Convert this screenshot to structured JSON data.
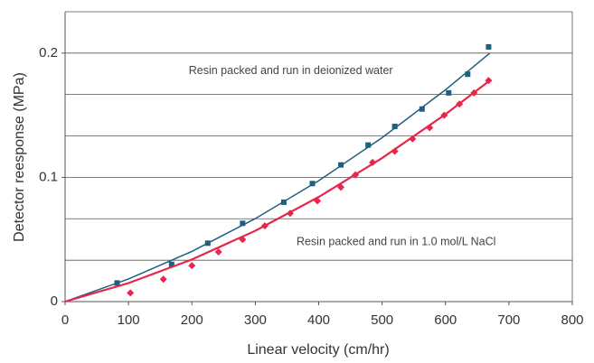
{
  "chart_data": {
    "type": "scatter",
    "x_label": "Linear velocity (cm/hr)",
    "y_label": "Detector reesponse (MPa)",
    "xlim": [
      0,
      800
    ],
    "xticks": [
      0,
      100,
      200,
      300,
      400,
      500,
      600,
      700,
      800
    ],
    "ylim": [
      0,
      0.2333
    ],
    "yticks": [
      0,
      0.1,
      0.2
    ],
    "ygrid": [
      0.0333,
      0.0667,
      0.1,
      0.1333,
      0.1667,
      0.2,
      0.2333
    ],
    "annotations": [
      {
        "text": "Resin packed and run in deionized water",
        "x": 195,
        "y": 0.1855
      },
      {
        "text": "Resin packed and run in 1.0 mol/L NaCl",
        "x": 365,
        "y": 0.048
      }
    ],
    "series": [
      {
        "color": "#1f5f7f",
        "marker": "square",
        "x": [
          82,
          168,
          225,
          280,
          345,
          390,
          435,
          478,
          520,
          563,
          605,
          635,
          668
        ],
        "values": [
          0.015,
          0.03,
          0.047,
          0.063,
          0.08,
          0.095,
          0.11,
          0.126,
          0.141,
          0.155,
          0.168,
          0.183,
          0.205
        ]
      },
      {
        "color": "#e8254a",
        "marker": "diamond",
        "x": [
          103,
          155,
          200,
          242,
          280,
          315,
          355,
          398,
          435,
          458,
          485,
          520,
          548,
          575,
          598,
          622,
          645,
          668
        ],
        "values": [
          0.007,
          0.018,
          0.029,
          0.04,
          0.05,
          0.061,
          0.071,
          0.081,
          0.092,
          0.102,
          0.112,
          0.121,
          0.131,
          0.14,
          0.15,
          0.159,
          0.168,
          0.178
        ]
      },
      {
        "color": "#1f5f7f",
        "marker": "line",
        "x": [
          0,
          100,
          200,
          300,
          400,
          500,
          600,
          670
        ],
        "values": [
          0,
          0.0182,
          0.0404,
          0.0668,
          0.0973,
          0.1319,
          0.1705,
          0.2
        ]
      },
      {
        "color": "#e8254a",
        "marker": "line",
        "x": [
          0,
          100,
          200,
          300,
          400,
          500,
          600,
          670
        ],
        "values": [
          0,
          0.0149,
          0.0339,
          0.057,
          0.0842,
          0.1155,
          0.1508,
          0.178
        ]
      }
    ]
  }
}
